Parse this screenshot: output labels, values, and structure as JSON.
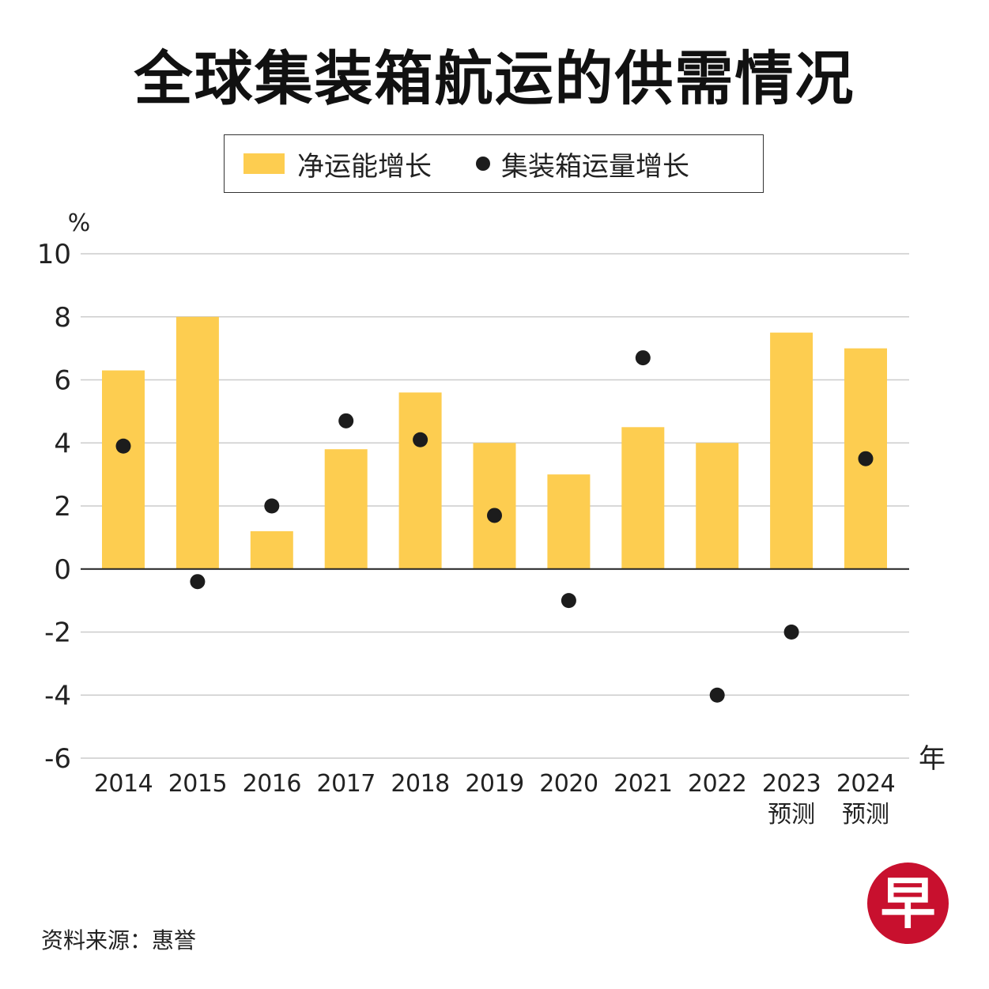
{
  "title": "全球集装箱航运的供需情况",
  "legend": {
    "bar_label": "净运能增长",
    "dot_label": "集装箱运量增长"
  },
  "colors": {
    "bar": "#FDCD50",
    "dot": "#1c1c1c",
    "grid": "#cccccc",
    "zero_line": "#222222",
    "logo": "#c8102e"
  },
  "source": "资料来源：惠誉",
  "logo_text": "早",
  "chart_data": {
    "type": "bar",
    "title": "全球集装箱航运的供需情况",
    "ylabel": "%",
    "xlabel": "年",
    "ylim": [
      -6,
      10
    ],
    "yticks": [
      10,
      8,
      6,
      4,
      2,
      0,
      -2,
      -4,
      -6
    ],
    "grid": true,
    "legend_position": "top",
    "categories": [
      "2014",
      "2015",
      "2016",
      "2017",
      "2018",
      "2019",
      "2020",
      "2021",
      "2022",
      "2023",
      "2024"
    ],
    "category_notes": [
      "",
      "",
      "",
      "",
      "",
      "",
      "",
      "",
      "",
      "预测",
      "预测"
    ],
    "series": [
      {
        "name": "净运能增长",
        "type": "bar",
        "values": [
          6.3,
          8.0,
          1.2,
          3.8,
          5.6,
          4.0,
          3.0,
          4.5,
          4.0,
          7.5,
          7.0
        ]
      },
      {
        "name": "集装箱运量增长",
        "type": "scatter",
        "values": [
          3.9,
          -0.4,
          2.0,
          4.7,
          4.1,
          1.7,
          -1.0,
          6.7,
          -4.0,
          -2.0,
          3.5
        ]
      }
    ]
  }
}
